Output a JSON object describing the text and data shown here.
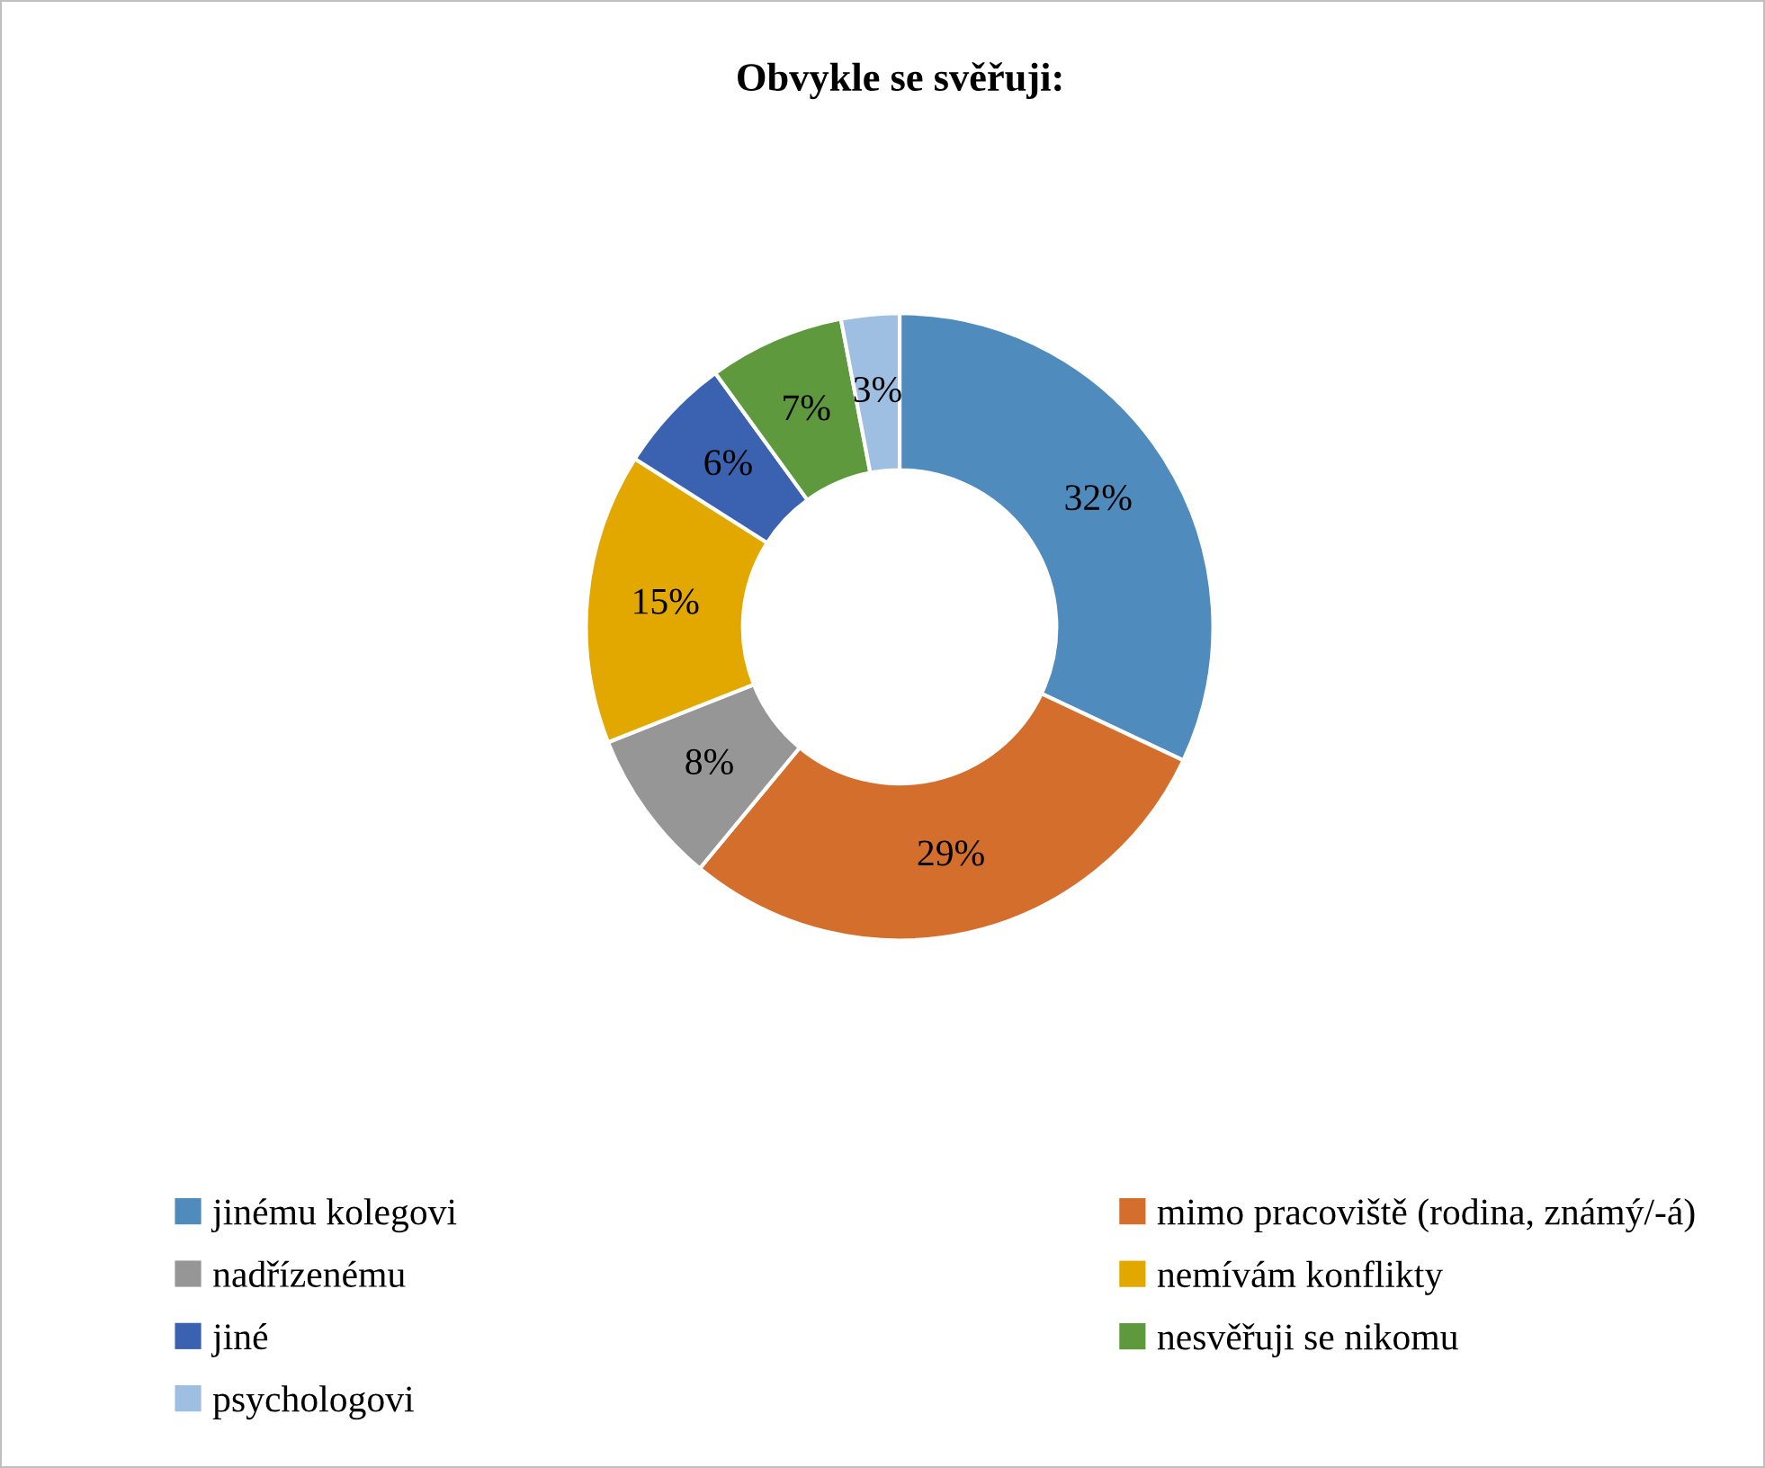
{
  "chart_data": {
    "type": "donut",
    "title": "Obvykle se svěřuji:",
    "categories": [
      "jinému kolegovi",
      "mimo pracoviště (rodina, známý/-á)",
      "nadřízenému",
      "nemívám konflikty",
      "jiné",
      "nesvěřuji se nikomu",
      "psychologovi"
    ],
    "values": [
      32,
      29,
      8,
      15,
      6,
      7,
      3
    ],
    "value_labels": [
      "32%",
      "29%",
      "8%",
      "15%",
      "6%",
      "7%",
      "3%"
    ],
    "colors": [
      "#4f8bbd",
      "#d46e2c",
      "#969696",
      "#e3a800",
      "#3a62b0",
      "#5e9a3d",
      "#9fbfe2"
    ],
    "legend": "bottom"
  }
}
